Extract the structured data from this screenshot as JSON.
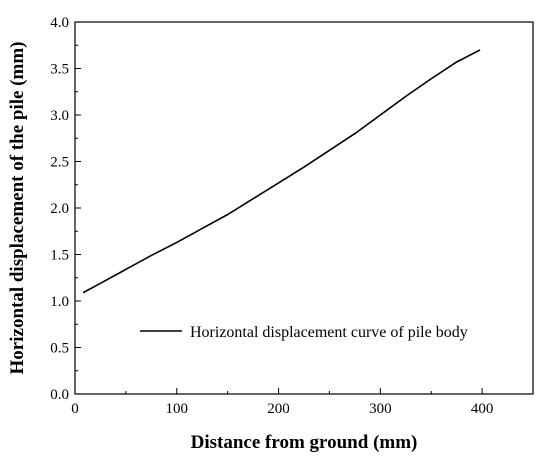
{
  "chart_data": {
    "type": "line",
    "title": "",
    "xlabel": "Distance from ground (mm)",
    "ylabel": "Horizontal displacement of the pile (mm)",
    "xlim": [
      0,
      450
    ],
    "ylim": [
      0.0,
      4.0
    ],
    "x_ticks": [
      "0",
      "100",
      "200",
      "300",
      "400"
    ],
    "y_ticks": [
      "0.0",
      "0.5",
      "1.0",
      "1.5",
      "2.0",
      "2.5",
      "3.0",
      "3.5",
      "4.0"
    ],
    "grid": false,
    "legend_position": "lower-right",
    "series": [
      {
        "name": "Horizontal displacement curve of pile body",
        "color": "#000000",
        "x": [
          8,
          25,
          50,
          75,
          100,
          125,
          150,
          175,
          200,
          225,
          250,
          275,
          300,
          325,
          350,
          375,
          398
        ],
        "y": [
          1.09,
          1.19,
          1.34,
          1.49,
          1.63,
          1.78,
          1.93,
          2.1,
          2.27,
          2.44,
          2.62,
          2.8,
          3.0,
          3.2,
          3.39,
          3.57,
          3.7
        ]
      }
    ]
  }
}
